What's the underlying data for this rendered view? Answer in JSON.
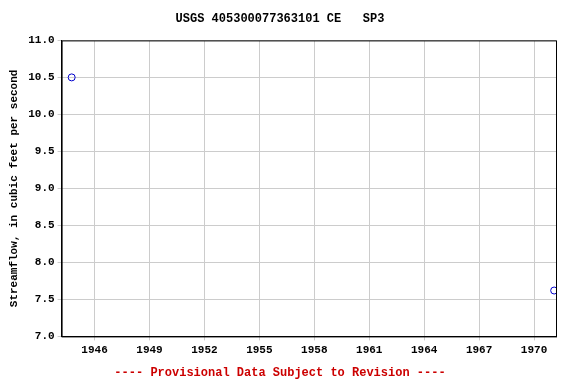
{
  "chart_data": {
    "type": "scatter",
    "title": "USGS 405300077363101 CE   SP3",
    "subtitle": "---- Provisional Data Subject to Revision ----",
    "y_label": "Streamflow, in cubic feet per second",
    "series": [
      {
        "name": "SP3",
        "color": "#0000cc",
        "marker": "circle",
        "x": [
          1944.75,
          1971.1
        ],
        "values": [
          10.5,
          7.62
        ]
      }
    ],
    "xlim": [
      1944.2,
      1971.2
    ],
    "xticks": [
      1946,
      1949,
      1952,
      1955,
      1958,
      1961,
      1964,
      1967,
      1970
    ],
    "ylim": [
      7,
      11
    ],
    "yticks": [
      {
        "value": 7,
        "label": "7.0"
      },
      7.5,
      {
        "value": 8,
        "label": "8.0"
      },
      8.5,
      {
        "value": 9,
        "label": "9.0"
      },
      9.5,
      {
        "value": 10,
        "label": "10.0"
      },
      10.5,
      {
        "value": 11,
        "label": "11.0"
      }
    ],
    "grid": true
  }
}
